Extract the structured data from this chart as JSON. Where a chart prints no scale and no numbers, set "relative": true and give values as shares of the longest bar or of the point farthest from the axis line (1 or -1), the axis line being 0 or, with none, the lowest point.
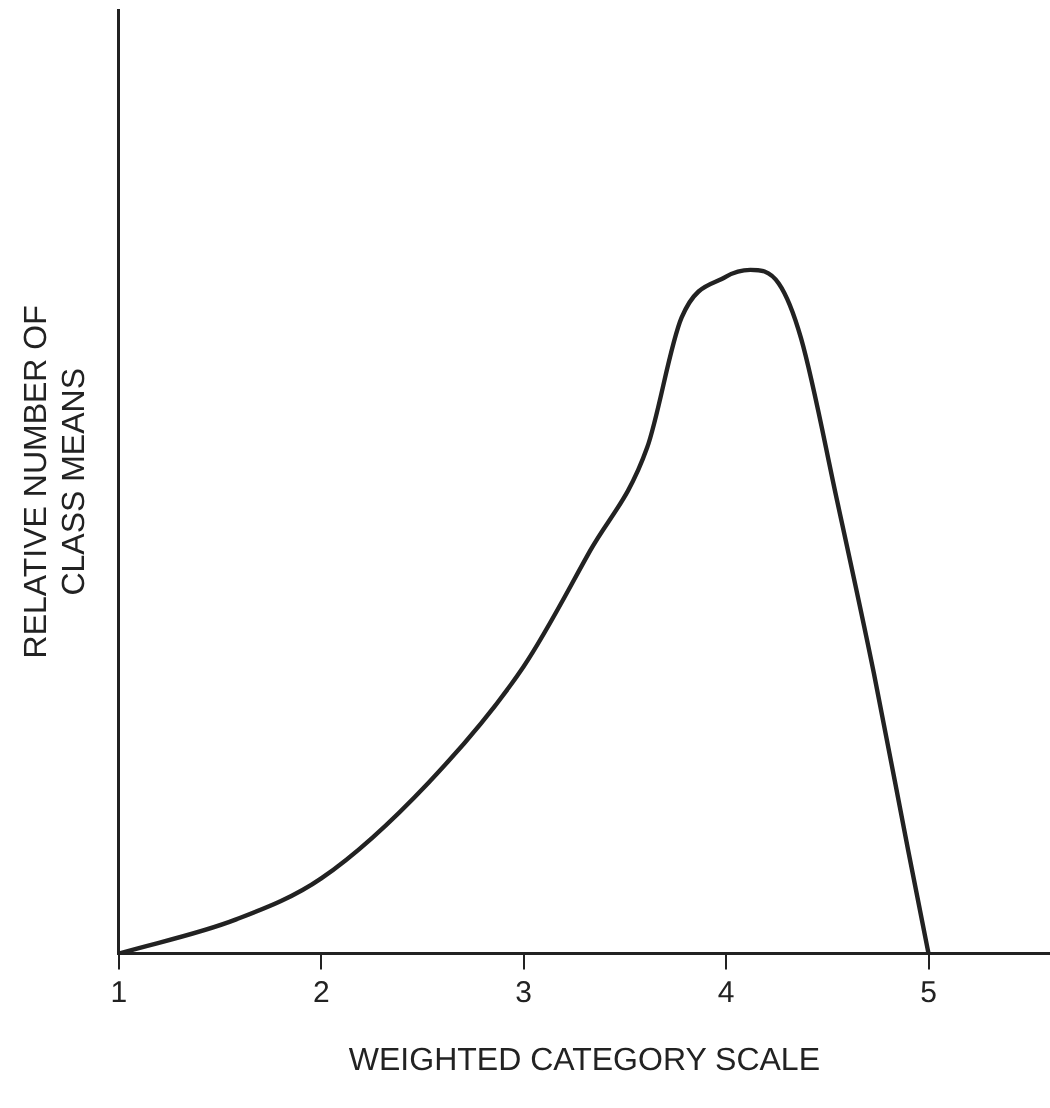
{
  "chart_data": {
    "type": "line",
    "relative": true,
    "xlabel": "WEIGHTED CATEGORY SCALE",
    "ylabel": "RELATIVE NUMBER OF\nCLASS MEANS",
    "xlim": [
      1,
      5.6
    ],
    "xticks": [
      1,
      2,
      3,
      4,
      5
    ],
    "series": [
      {
        "color": "#222222",
        "x": [
          1,
          1.58,
          2,
          2.53,
          3,
          3.33,
          3.61,
          3.78,
          4.0,
          4.12,
          4.26,
          4.37,
          4.55,
          4.73,
          4.9,
          5
        ],
        "values": [
          0,
          0.05,
          0.11,
          0.25,
          0.42,
          0.59,
          0.74,
          0.93,
          0.99,
          1,
          0.98,
          0.9,
          0.66,
          0.41,
          0.15,
          0
        ]
      }
    ],
    "grid": false,
    "legend": false,
    "marker": "none",
    "line_style": "solid"
  }
}
